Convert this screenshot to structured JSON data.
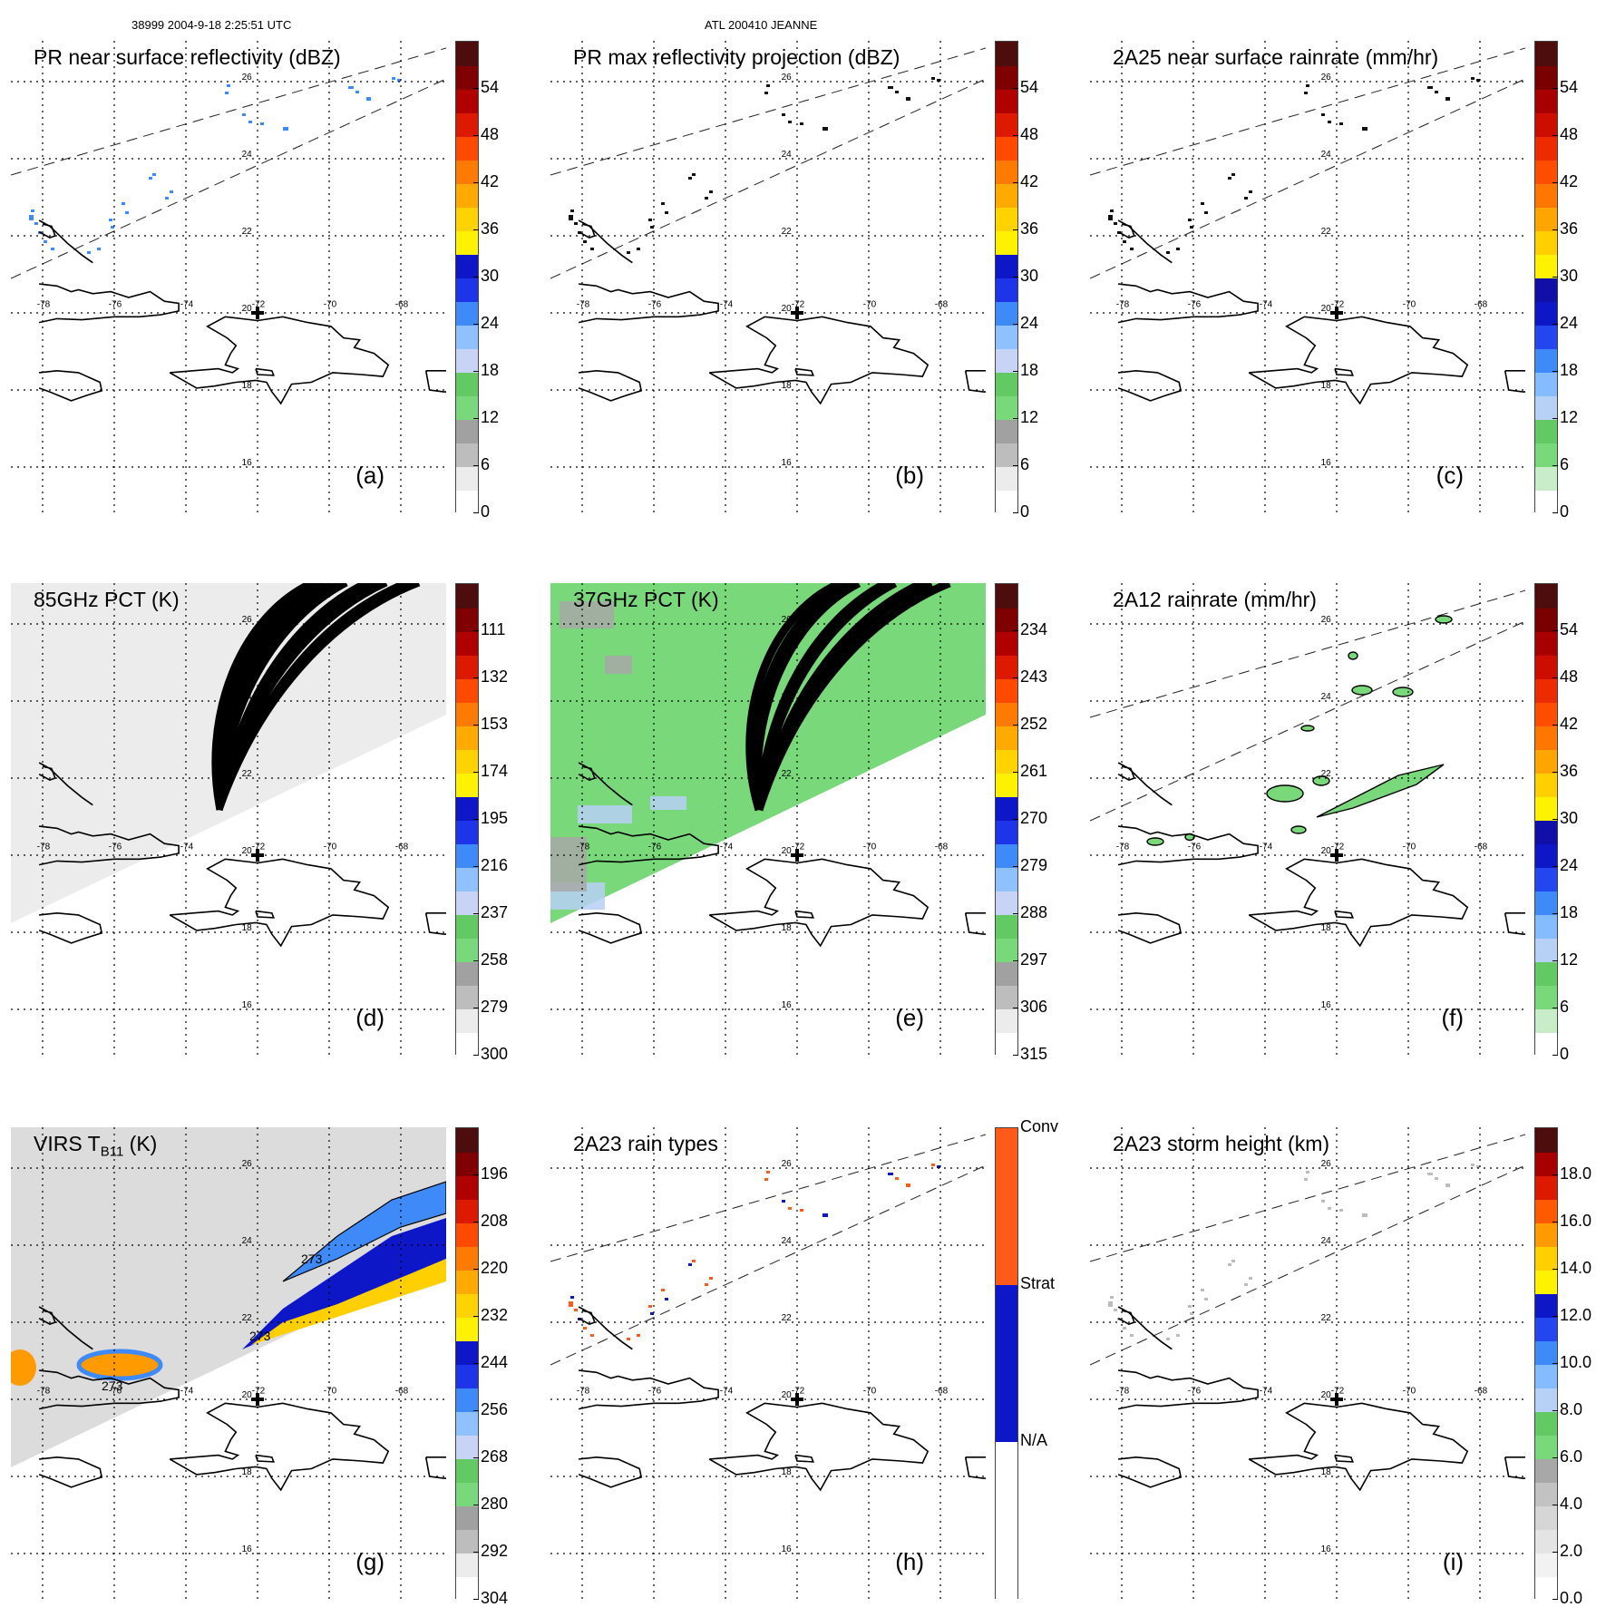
{
  "header": {
    "left": "38999 2004-9-18 2:25:51 UTC",
    "center": "ATL 200410 JEANNE"
  },
  "chart_data": [
    {
      "type": "heatmap",
      "id": "a",
      "title": "PR near surface reflectivity (dBZ)",
      "label": "(a)",
      "colorbar": {
        "ticks": [
          "54",
          "48",
          "42",
          "36",
          "30",
          "24",
          "18",
          "12",
          "6",
          "0"
        ],
        "range": [
          0,
          60
        ]
      },
      "lat_labels": [
        "26",
        "24",
        "22",
        "20",
        "18",
        "16"
      ],
      "lon_labels": [
        "-78",
        "-76",
        "-74",
        "-72",
        "-70",
        "-68"
      ],
      "storm_center": {
        "lon": -72.0,
        "lat": 20.0
      },
      "swath": "narrow",
      "field": "PR"
    },
    {
      "type": "heatmap",
      "id": "b",
      "title": "PR max reflectivity projection (dBZ)",
      "label": "(b)",
      "colorbar": {
        "ticks": [
          "54",
          "48",
          "42",
          "36",
          "30",
          "24",
          "18",
          "12",
          "6",
          "0"
        ],
        "range": [
          0,
          60
        ]
      },
      "lat_labels": [
        "26",
        "24",
        "22",
        "20",
        "18",
        "16"
      ],
      "lon_labels": [
        "-78",
        "-76",
        "-74",
        "-72",
        "-70",
        "-68"
      ],
      "storm_center": {
        "lon": -72.0,
        "lat": 20.0
      },
      "swath": "narrow",
      "field": "PRmax"
    },
    {
      "type": "heatmap",
      "id": "c",
      "title": "2A25 near surface rainrate (mm/hr)",
      "label": "(c)",
      "colorbar": {
        "ticks": [
          "54",
          "48",
          "42",
          "36",
          "30",
          "24",
          "18",
          "12",
          "6",
          "0"
        ],
        "range": [
          0,
          60
        ]
      },
      "lat_labels": [
        "26",
        "24",
        "22",
        "20",
        "18",
        "16"
      ],
      "lon_labels": [
        "-78",
        "-76",
        "-74",
        "-72",
        "-70",
        "-68"
      ],
      "storm_center": {
        "lon": -72.0,
        "lat": 20.0
      },
      "swath": "narrow",
      "field": "2A25"
    },
    {
      "type": "heatmap",
      "id": "d",
      "title": "85GHz PCT (K)",
      "label": "(d)",
      "colorbar": {
        "ticks": [
          "111",
          "132",
          "153",
          "174",
          "195",
          "216",
          "237",
          "258",
          "279",
          "300"
        ],
        "range": [
          90,
          300
        ]
      },
      "lat_labels": [
        "26",
        "24",
        "22",
        "20",
        "18",
        "16"
      ],
      "lon_labels": [
        "-78",
        "-76",
        "-74",
        "-72",
        "-70",
        "-68"
      ],
      "storm_center": {
        "lon": -72.0,
        "lat": 20.0
      },
      "swath": "wide",
      "field": "85"
    },
    {
      "type": "heatmap",
      "id": "e",
      "title": "37GHz PCT (K)",
      "label": "(e)",
      "colorbar": {
        "ticks": [
          "234",
          "243",
          "252",
          "261",
          "270",
          "279",
          "288",
          "297",
          "306",
          "315"
        ],
        "range": [
          225,
          315
        ]
      },
      "lat_labels": [
        "26",
        "24",
        "22",
        "20",
        "18",
        "16"
      ],
      "lon_labels": [
        "-78",
        "-76",
        "-74",
        "-72",
        "-70",
        "-68"
      ],
      "storm_center": {
        "lon": -72.0,
        "lat": 20.0
      },
      "swath": "wide",
      "field": "37"
    },
    {
      "type": "heatmap",
      "id": "f",
      "title": "2A12 rainrate (mm/hr)",
      "label": "(f)",
      "colorbar": {
        "ticks": [
          "54",
          "48",
          "42",
          "36",
          "30",
          "24",
          "18",
          "12",
          "6",
          "0"
        ],
        "range": [
          0,
          60
        ]
      },
      "lat_labels": [
        "26",
        "24",
        "22",
        "20",
        "18",
        "16"
      ],
      "lon_labels": [
        "-78",
        "-76",
        "-74",
        "-72",
        "-70",
        "-68"
      ],
      "storm_center": {
        "lon": -72.0,
        "lat": 20.0
      },
      "swath": "narrow",
      "field": "2A12"
    },
    {
      "type": "heatmap",
      "id": "g",
      "title": "VIRS T",
      "title_sub": "B11",
      "title_suffix": " (K)",
      "label": "(g)",
      "colorbar": {
        "ticks": [
          "196",
          "208",
          "220",
          "232",
          "244",
          "256",
          "268",
          "280",
          "292",
          "304"
        ],
        "range": [
          184,
          304
        ]
      },
      "lat_labels": [
        "26",
        "24",
        "22",
        "20",
        "18",
        "16"
      ],
      "lon_labels": [
        "-78",
        "-76",
        "-74",
        "-72",
        "-70",
        "-68"
      ],
      "storm_center": {
        "lon": -72.0,
        "lat": 20.0
      },
      "contour_labels": [
        "273",
        "273",
        "273"
      ],
      "swath": "wide",
      "field": "VIRS"
    },
    {
      "type": "heatmap",
      "id": "h",
      "title": "2A23 rain types",
      "label": "(h)",
      "colorbar": {
        "categories": [
          "Conv",
          "Strat",
          "N/A"
        ]
      },
      "lat_labels": [
        "26",
        "24",
        "22",
        "20",
        "18",
        "16"
      ],
      "lon_labels": [
        "-78",
        "-76",
        "-74",
        "-72",
        "-70",
        "-68"
      ],
      "storm_center": {
        "lon": -72.0,
        "lat": 20.0
      },
      "swath": "narrow",
      "field": "types"
    },
    {
      "type": "heatmap",
      "id": "i",
      "title": "2A23 storm height (km)",
      "label": "(i)",
      "colorbar": {
        "ticks": [
          "18.0",
          "16.0",
          "14.0",
          "12.0",
          "10.0",
          "8.0",
          "6.0",
          "4.0",
          "2.0",
          "0.0"
        ],
        "range": [
          0,
          20
        ]
      },
      "lat_labels": [
        "26",
        "24",
        "22",
        "20",
        "18",
        "16"
      ],
      "lon_labels": [
        "-78",
        "-76",
        "-74",
        "-72",
        "-70",
        "-68"
      ],
      "storm_center": {
        "lon": -72.0,
        "lat": 20.0
      },
      "swath": "narrow",
      "field": "height"
    }
  ]
}
